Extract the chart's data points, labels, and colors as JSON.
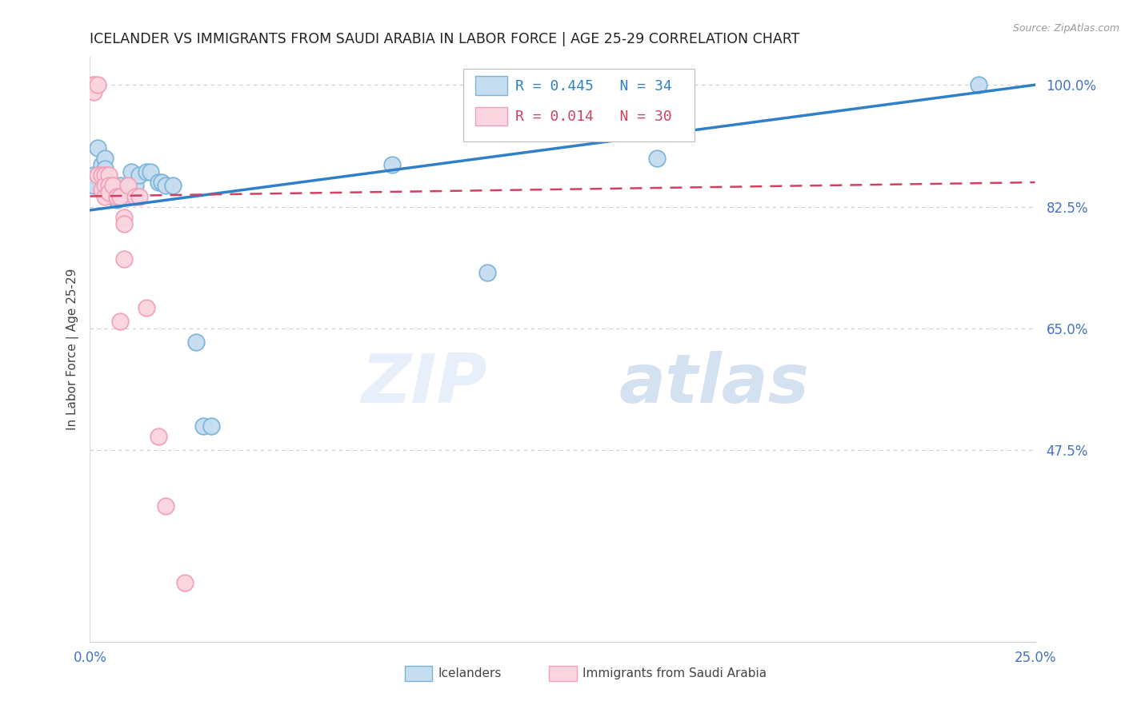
{
  "title": "ICELANDER VS IMMIGRANTS FROM SAUDI ARABIA IN LABOR FORCE | AGE 25-29 CORRELATION CHART",
  "source": "Source: ZipAtlas.com",
  "ylabel": "In Labor Force | Age 25-29",
  "watermark_zip": "ZIP",
  "watermark_atlas": "atlas",
  "xlim": [
    0.0,
    0.25
  ],
  "ylim": [
    0.2,
    1.04
  ],
  "xticks": [
    0.0,
    0.05,
    0.1,
    0.15,
    0.2,
    0.25
  ],
  "xticklabels": [
    "0.0%",
    "",
    "",
    "",
    "",
    "25.0%"
  ],
  "yticks_right": [
    1.0,
    0.825,
    0.65,
    0.475
  ],
  "ytick_right_labels": [
    "100.0%",
    "82.5%",
    "65.0%",
    "47.5%"
  ],
  "grid_yticks": [
    1.0,
    0.825,
    0.65,
    0.475
  ],
  "legend_r1": "R = 0.445",
  "legend_n1": "N = 34",
  "legend_r2": "R = 0.014",
  "legend_n2": "N = 30",
  "blue_edge": "#7ab3d9",
  "blue_fill": "#c5ddf0",
  "pink_edge": "#f0a0b8",
  "pink_fill": "#fad4df",
  "trend_blue": "#3080c8",
  "trend_pink": "#d04060",
  "title_color": "#222222",
  "axis_label_color": "#444444",
  "right_tick_color": "#4472c4",
  "bottom_tick_color": "#4472c4",
  "blue_scatter_x": [
    0.001,
    0.001,
    0.002,
    0.003,
    0.003,
    0.004,
    0.004,
    0.005,
    0.006,
    0.007,
    0.008,
    0.009,
    0.01,
    0.01,
    0.011,
    0.012,
    0.013,
    0.015,
    0.016,
    0.018,
    0.019,
    0.02,
    0.022,
    0.028,
    0.03,
    0.032,
    0.08,
    0.105,
    0.15,
    0.235
  ],
  "blue_scatter_y": [
    0.87,
    0.855,
    0.91,
    0.87,
    0.885,
    0.895,
    0.88,
    0.855,
    0.84,
    0.835,
    0.855,
    0.845,
    0.855,
    0.84,
    0.875,
    0.855,
    0.87,
    0.875,
    0.875,
    0.86,
    0.86,
    0.855,
    0.855,
    0.63,
    0.51,
    0.51,
    0.885,
    0.73,
    0.895,
    1.0
  ],
  "pink_scatter_x": [
    0.001,
    0.001,
    0.001,
    0.002,
    0.002,
    0.003,
    0.003,
    0.004,
    0.004,
    0.004,
    0.005,
    0.005,
    0.005,
    0.006,
    0.007,
    0.008,
    0.008,
    0.009,
    0.009,
    0.009,
    0.01,
    0.012,
    0.013,
    0.015,
    0.018,
    0.02,
    0.025
  ],
  "pink_scatter_y": [
    1.0,
    1.0,
    0.99,
    1.0,
    0.87,
    0.87,
    0.85,
    0.87,
    0.855,
    0.84,
    0.87,
    0.855,
    0.845,
    0.855,
    0.84,
    0.84,
    0.66,
    0.81,
    0.8,
    0.75,
    0.855,
    0.84,
    0.84,
    0.68,
    0.495,
    0.395,
    0.285
  ],
  "blue_trend_x": [
    0.0,
    0.25
  ],
  "blue_trend_y": [
    0.82,
    1.0
  ],
  "pink_trend_x": [
    0.0,
    0.25
  ],
  "pink_trend_y": [
    0.84,
    0.86
  ]
}
